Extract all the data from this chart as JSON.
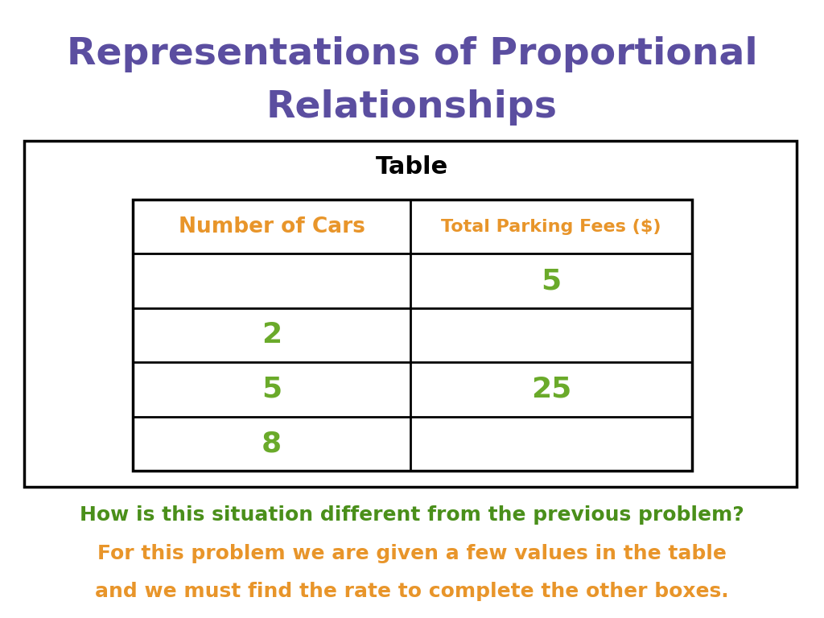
{
  "title_line1": "Representations of Proportional",
  "title_line2": "Relationships",
  "title_color": "#5b4ea0",
  "table_label": "Table",
  "table_label_color": "#000000",
  "col1_header": "Number of Cars",
  "col2_header": "Total Parking Fees ($)",
  "header_color": "#e8952a",
  "col1_values": [
    "",
    "2",
    "5",
    "8"
  ],
  "col2_values": [
    "5",
    "",
    "25",
    ""
  ],
  "data_color": "#6aaa2a",
  "footer_line1": "How is this situation different from the previous problem?",
  "footer_line2": "For this problem we are given a few values in the table",
  "footer_line3": "and we must find the rate to complete the other boxes.",
  "footer_color_line1": "#4a8f1a",
  "footer_color_line2": "#e8952a",
  "footer_color_line3": "#e8952a",
  "background_color": "#ffffff"
}
